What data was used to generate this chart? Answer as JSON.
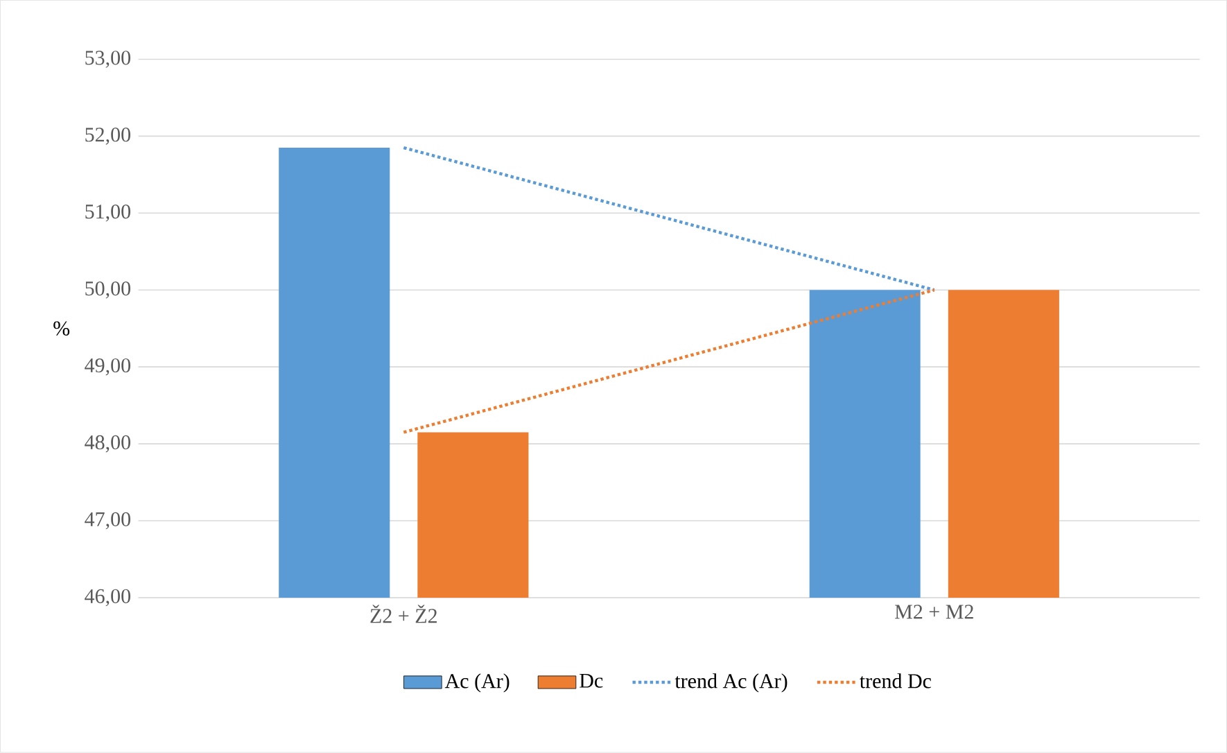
{
  "chart_data": {
    "type": "bar",
    "ylabel": "%",
    "categories": [
      "Ž2 + Ž2",
      "M2 + M2"
    ],
    "series": [
      {
        "name": "Ac (Ar)",
        "color": "#5b9bd5",
        "values": [
          51.85,
          50.0
        ]
      },
      {
        "name": "Dc",
        "color": "#ed7d31",
        "values": [
          48.15,
          50.0
        ]
      },
      {
        "name": "trend Ac (Ar)",
        "type": "line",
        "line_style": "dotted",
        "color": "#5b9bd5",
        "values": [
          51.85,
          50.0
        ]
      },
      {
        "name": "trend Dc",
        "type": "line",
        "line_style": "dotted",
        "color": "#ed7d31",
        "values": [
          48.15,
          50.0
        ]
      }
    ],
    "ylim": [
      46,
      53
    ],
    "yticks": [
      {
        "value": 46,
        "label": "46,00"
      },
      {
        "value": 47,
        "label": "47,00"
      },
      {
        "value": 48,
        "label": "48,00"
      },
      {
        "value": 49,
        "label": "49,00"
      },
      {
        "value": 50,
        "label": "50,00"
      },
      {
        "value": 51,
        "label": "51,00"
      },
      {
        "value": 52,
        "label": "52,00"
      },
      {
        "value": 53,
        "label": "53,00"
      }
    ],
    "grid": "y",
    "legend": "bottom"
  }
}
